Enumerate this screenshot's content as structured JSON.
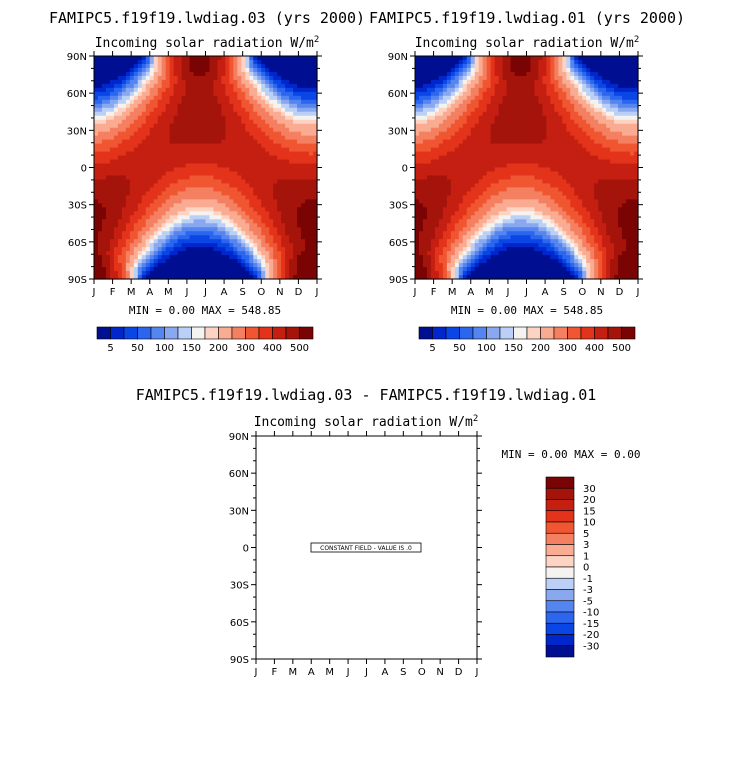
{
  "palette": [
    "#000f91",
    "#0026cc",
    "#0a46e6",
    "#2c66ee",
    "#5585f0",
    "#8aa8f0",
    "#bbd0f6",
    "#f5f3f0",
    "#fdd4c4",
    "#f9ac92",
    "#f48061",
    "#ef5631",
    "#e3341b",
    "#c51f12",
    "#a5140b",
    "#7a0404"
  ],
  "chart_data": [
    {
      "type": "heatmap",
      "title": "FAMIPC5.f19f19.lwdiag.03 (yrs 2000)",
      "subtitle": "Incoming solar radiation W/m",
      "subtitle_sup": "2",
      "x_ticks": [
        "J",
        "F",
        "M",
        "A",
        "M",
        "J",
        "J",
        "A",
        "S",
        "O",
        "N",
        "D",
        "J"
      ],
      "y_ticks": [
        "90N",
        "60N",
        "30N",
        "0",
        "30S",
        "60S",
        "90S"
      ],
      "stats": "MIN =    0.00 MAX = 548.85",
      "colorbar_labels": [
        "5",
        "50",
        "100",
        "150",
        "200",
        "300",
        "400",
        "500"
      ],
      "min": 0.0,
      "max": 548.85
    },
    {
      "type": "heatmap",
      "title": "FAMIPC5.f19f19.lwdiag.01 (yrs 2000)",
      "subtitle": "Incoming solar radiation W/m",
      "subtitle_sup": "2",
      "x_ticks": [
        "J",
        "F",
        "M",
        "A",
        "M",
        "J",
        "J",
        "A",
        "S",
        "O",
        "N",
        "D",
        "J"
      ],
      "y_ticks": [
        "90N",
        "60N",
        "30N",
        "0",
        "30S",
        "60S",
        "90S"
      ],
      "stats": "MIN =    0.00 MAX = 548.85",
      "colorbar_labels": [
        "5",
        "50",
        "100",
        "150",
        "200",
        "300",
        "400",
        "500"
      ],
      "min": 0.0,
      "max": 548.85
    },
    {
      "type": "heatmap",
      "title": "FAMIPC5.f19f19.lwdiag.03 - FAMIPC5.f19f19.lwdiag.01",
      "subtitle": "Incoming solar radiation W/m",
      "subtitle_sup": "2",
      "x_ticks": [
        "J",
        "F",
        "M",
        "A",
        "M",
        "J",
        "J",
        "A",
        "S",
        "O",
        "N",
        "D",
        "J"
      ],
      "y_ticks": [
        "90N",
        "60N",
        "30N",
        "0",
        "30S",
        "60S",
        "90S"
      ],
      "stats": "MIN =    0.00 MAX =    0.00",
      "annotation": "CONSTANT FIELD - VALUE IS .0",
      "colorbar_labels": [
        "30",
        "20",
        "15",
        "10",
        "5",
        "3",
        "1",
        "0",
        "-1",
        "-3",
        "-5",
        "-10",
        "-15",
        "-20",
        "-30"
      ],
      "min": 0.0,
      "max": 0.0
    }
  ]
}
